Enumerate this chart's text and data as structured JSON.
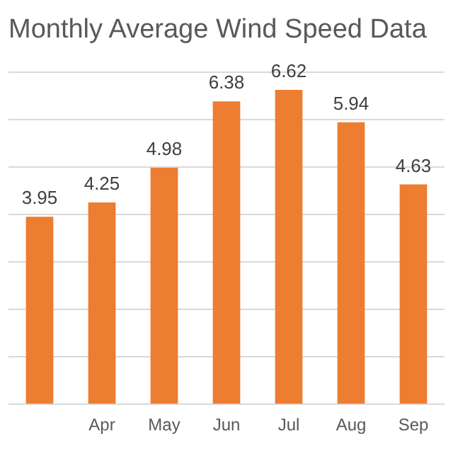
{
  "chart_data": {
    "type": "bar",
    "title": "Monthly Average Wind Speed Data",
    "categories": [
      null,
      "Apr",
      "May",
      "Jun",
      "Jul",
      "Aug",
      "Sep"
    ],
    "values": [
      3.95,
      4.25,
      4.98,
      6.38,
      6.62,
      5.94,
      4.63
    ],
    "color": "#ed7d31",
    "data_labels": true,
    "grid": "y",
    "tick_labels": "x",
    "legend": false,
    "ylim": [
      0,
      7
    ],
    "yticks": [
      {
        "value": 0,
        "label": null
      },
      {
        "value": 1,
        "label": null
      },
      {
        "value": 2,
        "label": null
      },
      {
        "value": 3,
        "label": null
      },
      {
        "value": 4,
        "label": null
      },
      {
        "value": 5,
        "label": null
      },
      {
        "value": 6,
        "label": null
      },
      {
        "value": 7,
        "label": null
      }
    ]
  }
}
